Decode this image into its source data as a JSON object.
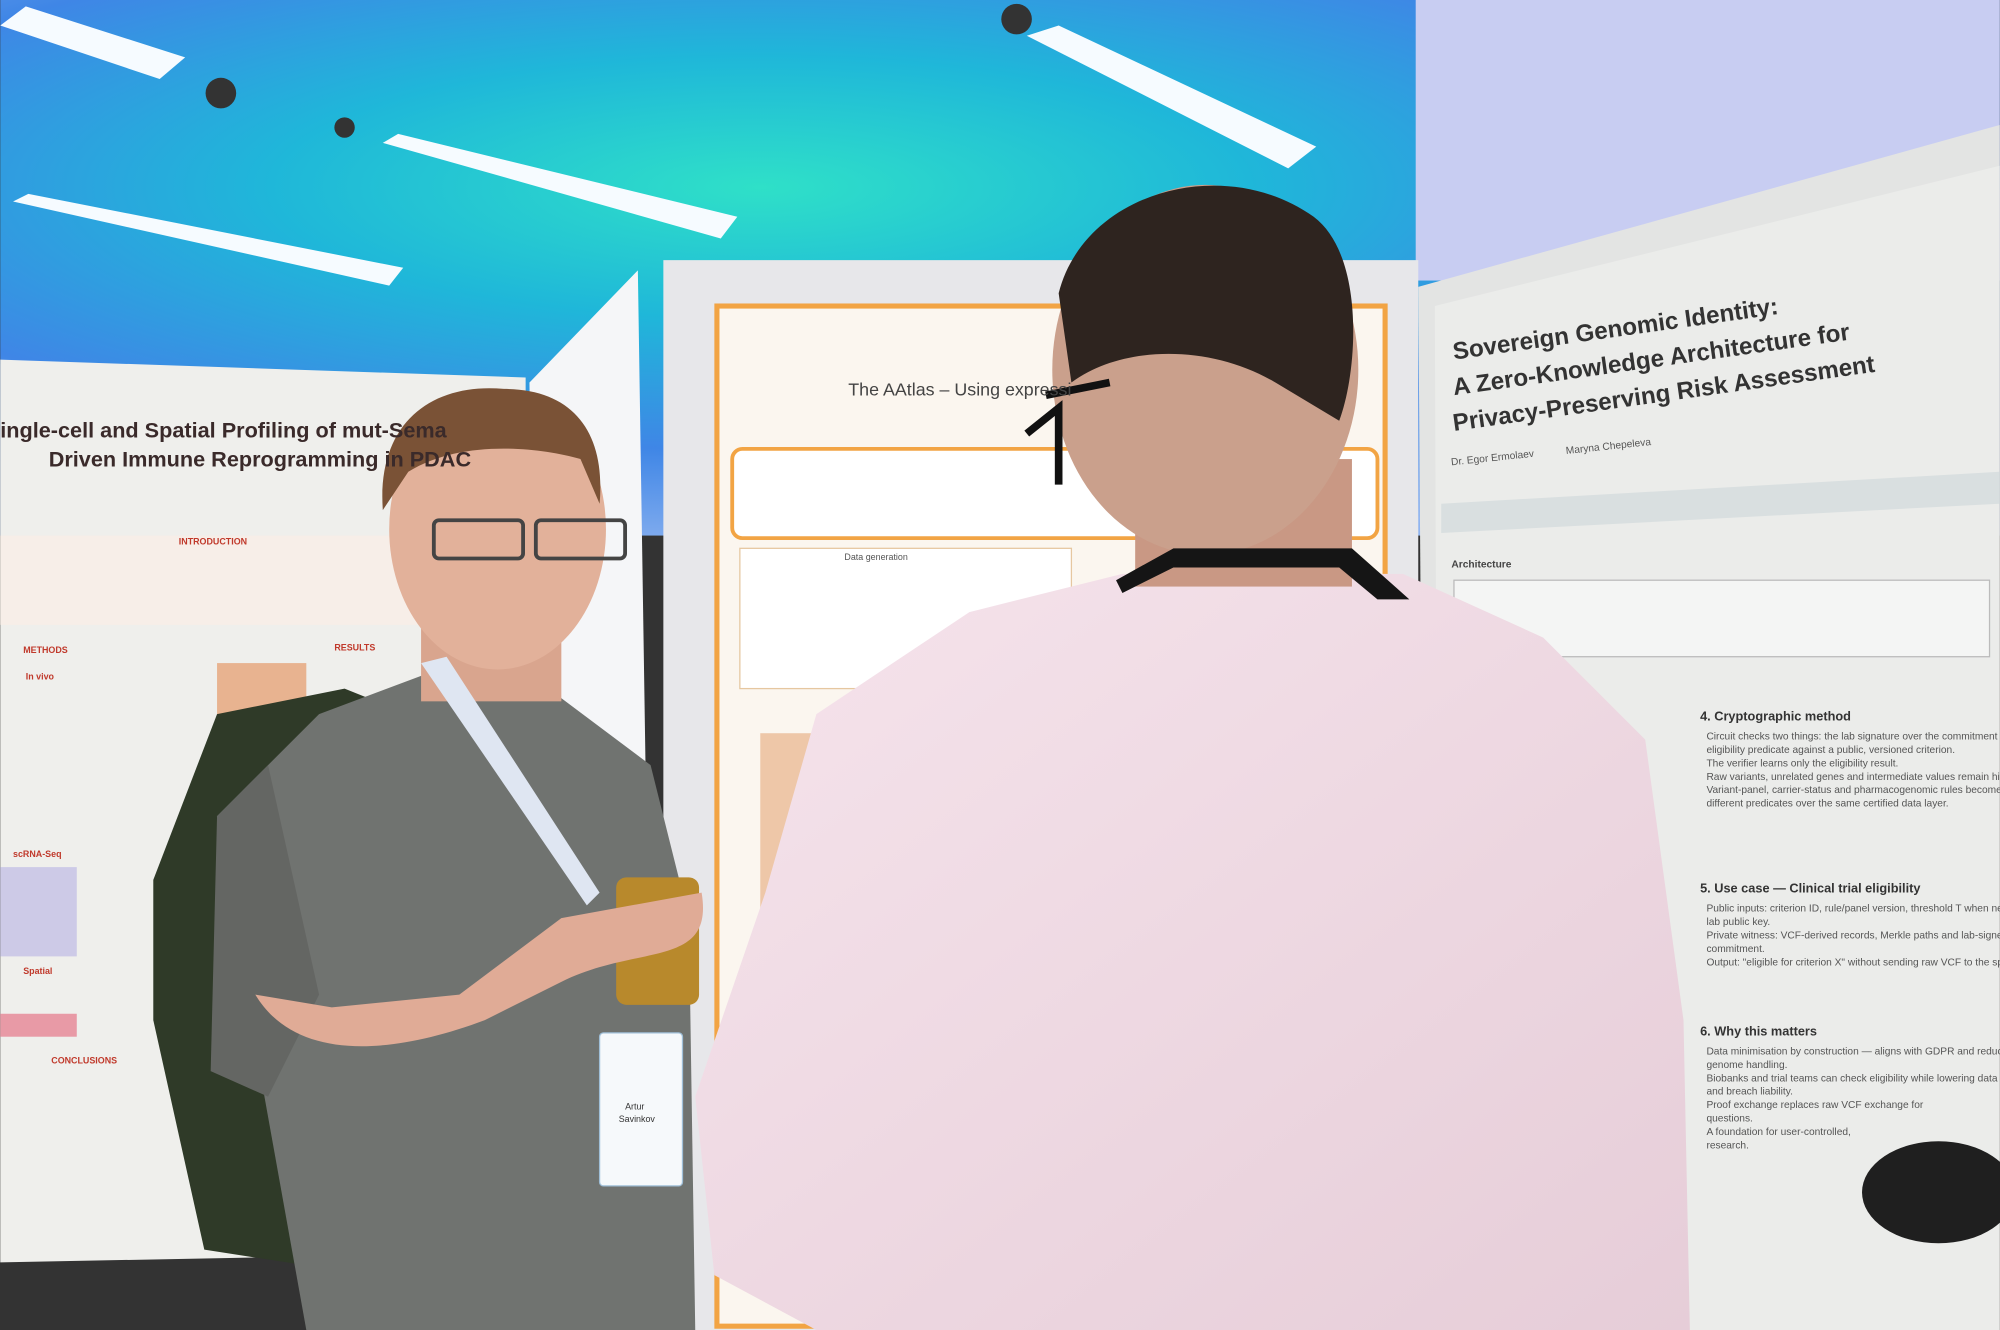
{
  "posters": {
    "left": {
      "title_lines": [
        "ingle-cell and Spatial Profiling of mut-Sema",
        "Driven Immune Reprogramming in PDAC"
      ],
      "sections": [
        "INTRODUCTION",
        "METHODS",
        "RESULTS",
        "In vivo",
        "scRNA-Seq",
        "Spatial",
        "CONCLUSIONS"
      ]
    },
    "middle": {
      "title": "The AAtlas – Using expressi",
      "sections": [
        "Data generation"
      ]
    },
    "right": {
      "title_lines": [
        "Sovereign Genomic Identity:",
        "A Zero-Knowledge Architecture for",
        "Privacy-Preserving Risk Assessment"
      ],
      "authors": [
        "Dr. Egor Ermolaev",
        "Maryna Chepeleva"
      ],
      "architecture": "Architecture",
      "sections": [
        {
          "heading": "4.  Cryptographic method",
          "bullets": [
            "Circuit checks two things: the lab signature over the commitment and the",
            "eligibility predicate against a public, versioned criterion.",
            "The verifier learns only the eligibility result.",
            "Raw variants, unrelated genes and intermediate values remain hidden.",
            "Variant-panel, carrier-status and pharmacogenomic rules become",
            "different predicates over the same certified data layer."
          ]
        },
        {
          "heading": "5.  Use case — Clinical trial eligibility",
          "bullets": [
            "Public inputs: criterion ID, rule/panel version, threshold T when needed,",
            "lab public key.",
            "Private witness: VCF-derived records, Merkle paths and lab-signed",
            "commitment.",
            "Output: \"eligible for criterion X\" without sending raw VCF to the sponsor."
          ]
        },
        {
          "heading": "6.  Why this matters",
          "bullets": [
            "Data minimisation by construction — aligns with GDPR and reduces raw",
            "genome handling.",
            "Biobanks and trial teams can check eligibility while lowering data",
            "and breach liability.",
            "Proof exchange replaces raw VCF exchange for",
            "questions.",
            "A foundation for user-controlled,",
            "research."
          ]
        }
      ]
    }
  },
  "badge": {
    "first_name": "Artur",
    "last_name": "Savinkov"
  }
}
